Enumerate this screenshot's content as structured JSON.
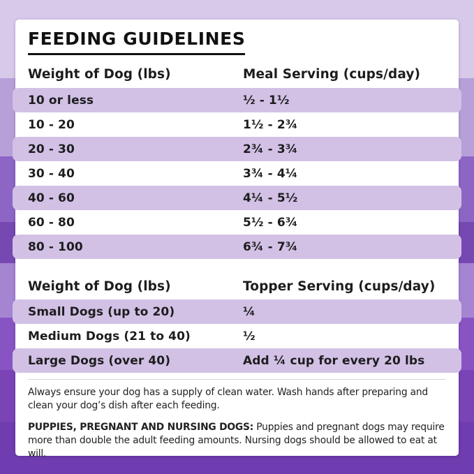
{
  "page": {
    "title": "FEEDING GUIDELINES"
  },
  "meal_table": {
    "col1_header": "Weight of Dog (lbs)",
    "col2_header": "Meal Serving (cups/day)",
    "rows": [
      {
        "weight": "10 or less",
        "serving": "½ - 1½"
      },
      {
        "weight": "10 - 20",
        "serving": "1½ - 2¾"
      },
      {
        "weight": "20 - 30",
        "serving": "2¾ - 3¾"
      },
      {
        "weight": "30 - 40",
        "serving": "3¾ - 4¼"
      },
      {
        "weight": "40 - 60",
        "serving": "4¼ - 5½"
      },
      {
        "weight": "60 - 80",
        "serving": "5½ - 6¾"
      },
      {
        "weight": "80 - 100",
        "serving": "6¾ - 7¾"
      }
    ]
  },
  "topper_table": {
    "col1_header": "Weight of Dog (lbs)",
    "col2_header": "Topper Serving (cups/day)",
    "rows": [
      {
        "weight": "Small Dogs (up to 20)",
        "serving": "¼"
      },
      {
        "weight": "Medium Dogs (21 to 40)",
        "serving": "½"
      },
      {
        "weight": "Large Dogs (over 40)",
        "serving": "Add ¼ cup for every 20 lbs"
      }
    ]
  },
  "notes": {
    "water_note": "Always ensure your dog has a supply of clean water. Wash hands after preparing and clean your dog’s dish after each feeding.",
    "puppies_label": "PUPPIES, PREGNANT AND NURSING DOGS:",
    "puppies_note": " Puppies and pregnant dogs may require more than double the adult feeding amounts. Nursing dogs should be allowed to eat at will."
  },
  "colors": {
    "stripe": "#d2c1e5",
    "card": "#ffffff",
    "text": "#1d1d1f",
    "background_bands": [
      "#d7c9e9",
      "#b7a0d8",
      "#8d66c5",
      "#7648b2",
      "#a585d2",
      "#8854c3",
      "#7a44b6",
      "#6f3daf"
    ]
  }
}
